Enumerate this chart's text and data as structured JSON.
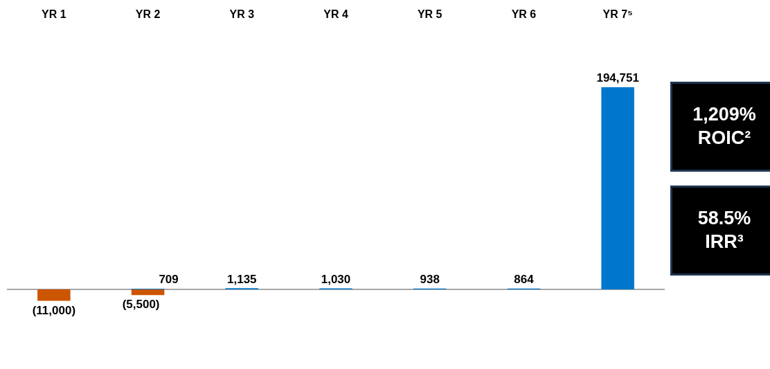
{
  "chart_data": {
    "type": "bar",
    "stacked": true,
    "categories": [
      "YR 1",
      "YR 2",
      "YR 3",
      "YR 4",
      "YR 5",
      "YR 6",
      "YR 7⁵"
    ],
    "series": [
      {
        "color": "#cc5500",
        "values": [
          -11000,
          -5500,
          null,
          null,
          null,
          null,
          null
        ],
        "value_labels": [
          "(11,000)",
          "(5,500)",
          null,
          null,
          null,
          null,
          null
        ]
      },
      {
        "color": "#0077cc",
        "values": [
          null,
          709,
          1135,
          1030,
          938,
          864,
          194751
        ],
        "value_labels": [
          null,
          "709",
          "1,135",
          "1,030",
          "938",
          "864",
          "194,751"
        ]
      }
    ],
    "grid": false,
    "legend": false,
    "tick_labels": "x",
    "annotations": [
      "1,209%\nROIC²",
      "58.5%\nIRR³"
    ]
  }
}
